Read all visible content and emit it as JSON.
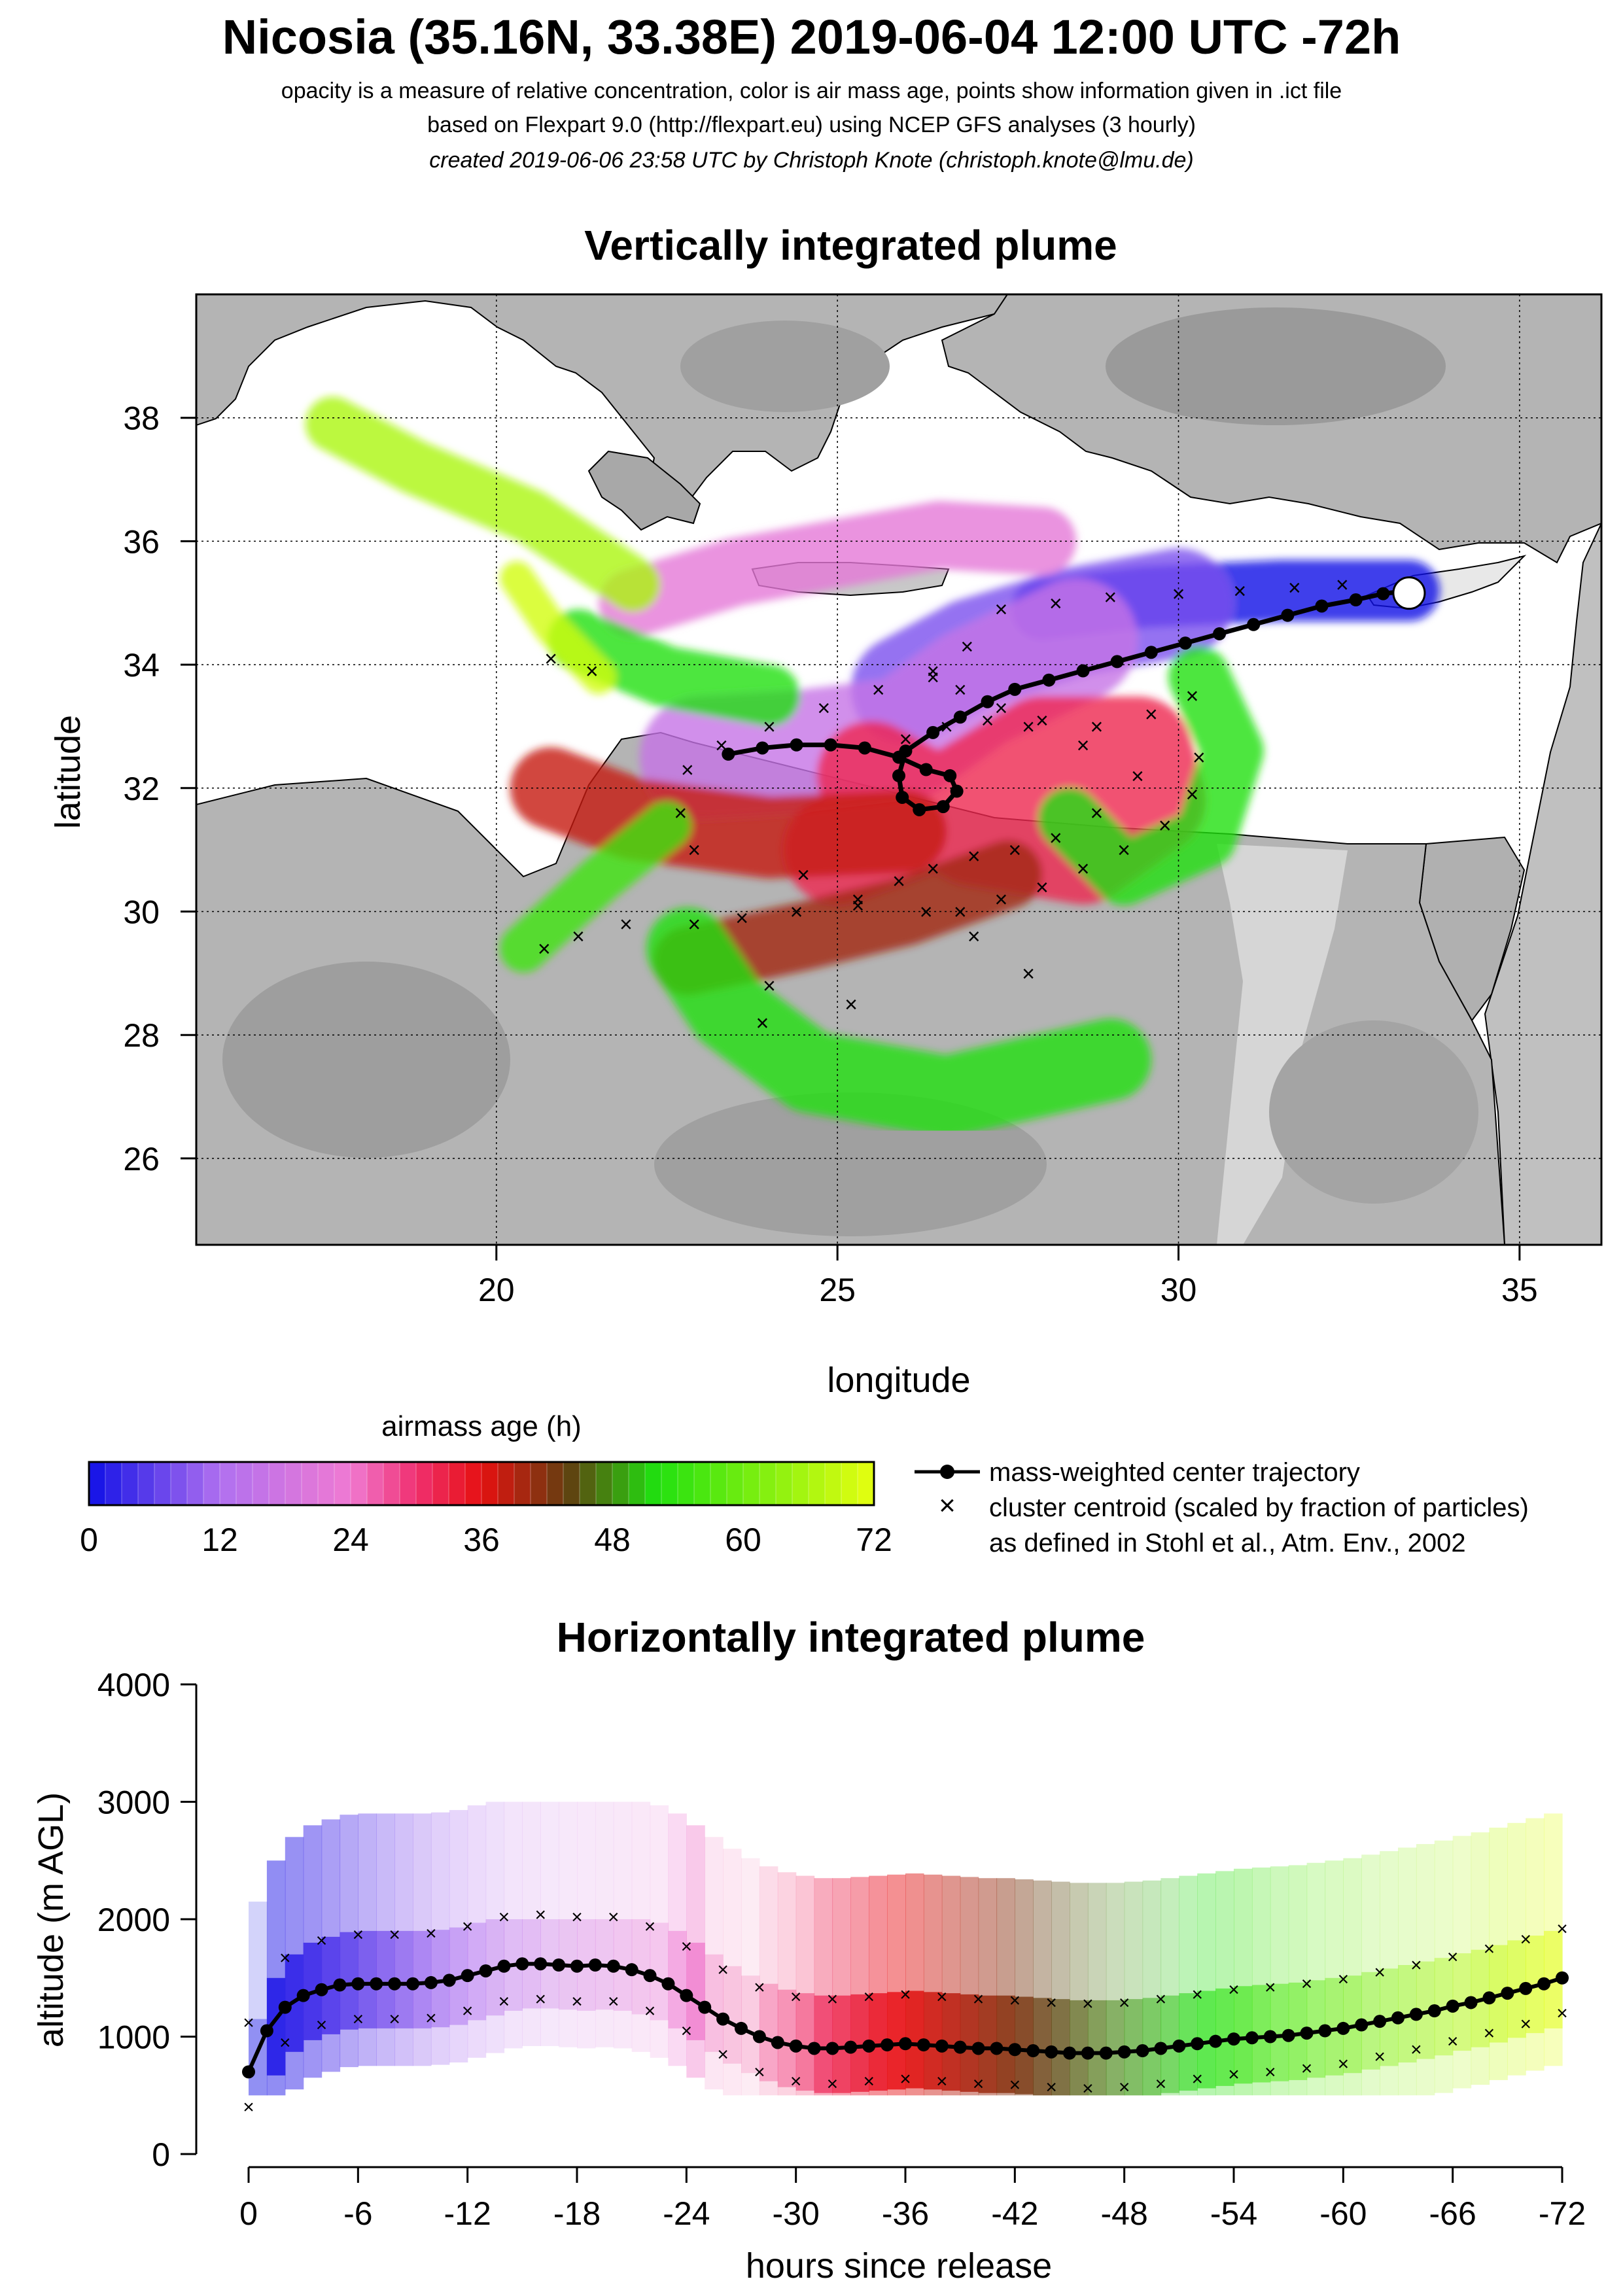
{
  "header": {
    "title": "Nicosia (35.16N, 33.38E) 2019-06-04 12:00 UTC -72h",
    "line1": "opacity is a measure of relative concentration, color is air mass age, points show information given in .ict file",
    "line2": "based on Flexpart 9.0 (http://flexpart.eu) using NCEP GFS analyses (3 hourly)",
    "line3": "created 2019-06-06 23:58 UTC by Christoph Knote (christoph.knote@lmu.de)"
  },
  "colors": {
    "age_ramp": [
      "#1010e6",
      "#b070f0",
      "#f07ad2",
      "#f03070",
      "#e61010",
      "#604010",
      "#20e010",
      "#e6ff10"
    ],
    "age_stops": [
      0,
      12,
      24,
      30,
      36,
      44,
      52,
      72
    ],
    "land": "#b4b4b4",
    "sea": "#ffffff"
  },
  "chart_data": [
    {
      "type": "heatmap",
      "title": "Vertically integrated plume",
      "xlabel": "longitude",
      "ylabel": "latitude",
      "xlim": [
        15.6,
        36.2
      ],
      "ylim": [
        24.6,
        40.0
      ],
      "xticks": [
        20,
        25,
        30,
        35
      ],
      "yticks": [
        26,
        28,
        30,
        32,
        34,
        36,
        38
      ],
      "grid": true,
      "release_point": {
        "lon": 33.38,
        "lat": 35.16
      },
      "center_trajectory": {
        "name": "mass-weighted center trajectory",
        "lon": [
          33.38,
          33.0,
          32.6,
          32.1,
          31.6,
          31.1,
          30.6,
          30.1,
          29.6,
          29.1,
          28.6,
          28.1,
          27.6,
          27.2,
          26.8,
          26.4,
          26.0,
          25.9,
          25.95,
          26.2,
          26.55,
          26.75,
          26.65,
          26.3,
          25.9,
          25.4,
          24.9,
          24.4,
          23.9,
          23.4
        ],
        "lat": [
          35.2,
          35.15,
          35.05,
          34.95,
          34.8,
          34.65,
          34.5,
          34.35,
          34.2,
          34.05,
          33.9,
          33.75,
          33.6,
          33.4,
          33.15,
          32.9,
          32.6,
          32.2,
          31.85,
          31.65,
          31.7,
          31.95,
          32.2,
          32.3,
          32.5,
          32.65,
          32.7,
          32.7,
          32.65,
          32.55
        ]
      },
      "cluster_centroids": {
        "name": "cluster centroid (scaled by fraction of particles)",
        "lon": [
          32.4,
          31.7,
          30.9,
          30.0,
          29.0,
          28.2,
          27.4,
          26.9,
          26.4,
          30.2,
          29.6,
          28.8,
          28.0,
          27.4,
          26.8,
          26.4,
          25.6,
          24.8,
          24.0,
          23.3,
          22.8,
          22.7,
          22.9,
          30.3,
          30.2,
          29.8,
          29.2,
          28.6,
          28.0,
          27.4,
          26.8,
          28.8,
          28.2,
          27.6,
          27.0,
          26.4,
          25.9,
          25.3,
          24.4,
          23.6,
          22.9,
          21.9,
          21.2,
          20.7,
          26.0,
          26.6,
          27.2,
          27.8,
          28.6,
          29.4,
          24.5,
          25.3,
          26.3,
          27.0,
          27.8,
          24.0,
          23.9,
          25.2,
          20.8,
          21.4
        ],
        "lat": [
          35.3,
          35.25,
          35.2,
          35.15,
          35.1,
          35.0,
          34.9,
          34.3,
          33.8,
          33.5,
          33.2,
          33.0,
          33.1,
          33.3,
          33.6,
          33.9,
          33.6,
          33.3,
          33.0,
          32.7,
          32.3,
          31.6,
          31.0,
          32.5,
          31.9,
          31.4,
          31.0,
          30.7,
          30.4,
          30.2,
          30.0,
          31.6,
          31.2,
          31.0,
          30.9,
          30.7,
          30.5,
          30.2,
          30.0,
          29.9,
          29.8,
          29.8,
          29.6,
          29.4,
          32.8,
          33.0,
          33.1,
          33.0,
          32.7,
          32.2,
          30.6,
          30.1,
          30.0,
          29.6,
          29.0,
          28.8,
          28.2,
          28.5,
          34.1,
          33.9
        ]
      },
      "plume_arms": [
        {
          "age_h": 0,
          "lon": [
            33.38,
            31.5,
            29.5,
            28.0
          ],
          "lat": [
            35.2,
            35.2,
            35.1,
            34.9
          ],
          "width_deg": 0.9
        },
        {
          "age_h": 8,
          "lon": [
            30.0,
            28.5,
            27.0,
            26.0
          ],
          "lat": [
            35.0,
            34.7,
            34.2,
            33.6
          ],
          "width_deg": 1.6
        },
        {
          "age_h": 16,
          "lon": [
            28.5,
            27.0,
            26.0,
            24.5,
            23.0
          ],
          "lat": [
            34.4,
            33.6,
            32.8,
            32.6,
            32.5
          ],
          "width_deg": 1.8
        },
        {
          "age_h": 22,
          "lon": [
            28.0,
            26.5,
            25.0,
            23.5,
            22.0
          ],
          "lat": [
            36.0,
            36.1,
            35.8,
            35.5,
            35.0
          ],
          "width_deg": 1.0
        },
        {
          "age_h": 32,
          "lon": [
            25.5,
            27.0,
            28.6,
            29.6,
            29.4,
            28.0,
            26.5,
            25.0
          ],
          "lat": [
            32.2,
            31.3,
            31.0,
            31.8,
            32.6,
            32.6,
            31.6,
            31.0
          ],
          "width_deg": 1.6
        },
        {
          "age_h": 38,
          "lon": [
            26.0,
            24.0,
            22.0,
            20.8
          ],
          "lat": [
            31.3,
            31.2,
            31.5,
            32.0
          ],
          "width_deg": 1.2
        },
        {
          "age_h": 40,
          "lon": [
            27.5,
            26.0,
            24.5,
            22.8
          ],
          "lat": [
            30.6,
            30.0,
            29.6,
            29.2
          ],
          "width_deg": 1.0
        },
        {
          "age_h": 52,
          "lon": [
            30.3,
            30.8,
            30.4,
            29.2,
            28.4
          ],
          "lat": [
            33.8,
            32.6,
            31.2,
            30.6,
            31.5
          ],
          "width_deg": 0.9
        },
        {
          "age_h": 52,
          "lon": [
            22.8,
            23.4,
            24.6,
            26.6,
            29.0
          ],
          "lat": [
            29.4,
            28.4,
            27.4,
            27.0,
            27.6
          ],
          "width_deg": 1.2
        },
        {
          "age_h": 52,
          "lon": [
            24.0,
            22.5,
            21.2
          ],
          "lat": [
            33.5,
            33.8,
            34.4
          ],
          "width_deg": 0.9
        },
        {
          "age_h": 55,
          "lon": [
            22.5,
            21.5,
            20.4
          ],
          "lat": [
            31.4,
            30.5,
            29.4
          ],
          "width_deg": 0.7
        },
        {
          "age_h": 66,
          "lon": [
            22.0,
            20.5,
            18.8,
            17.6
          ],
          "lat": [
            35.3,
            36.4,
            37.2,
            37.9
          ],
          "width_deg": 0.8
        },
        {
          "age_h": 70,
          "lon": [
            21.5,
            20.8,
            20.3
          ],
          "lat": [
            33.8,
            34.6,
            35.4
          ],
          "width_deg": 0.5
        }
      ]
    },
    {
      "type": "heatmap",
      "title": "Horizontally integrated plume",
      "xlabel": "hours since release",
      "ylabel": "altitude (m AGL)",
      "xlim": [
        0,
        -72
      ],
      "ylim": [
        0,
        4000
      ],
      "xticks": [
        0,
        -6,
        -12,
        -18,
        -24,
        -30,
        -36,
        -42,
        -48,
        -54,
        -60,
        -66,
        -72
      ],
      "yticks": [
        0,
        1000,
        2000,
        3000,
        4000
      ],
      "center_trajectory": {
        "name": "mass-weighted center trajectory",
        "x": [
          0,
          -1,
          -2,
          -3,
          -4,
          -5,
          -6,
          -7,
          -8,
          -9,
          -10,
          -11,
          -12,
          -13,
          -14,
          -15,
          -16,
          -17,
          -18,
          -19,
          -20,
          -21,
          -22,
          -23,
          -24,
          -25,
          -26,
          -27,
          -28,
          -29,
          -30,
          -31,
          -32,
          -33,
          -34,
          -35,
          -36,
          -37,
          -38,
          -39,
          -40,
          -41,
          -42,
          -43,
          -44,
          -45,
          -46,
          -47,
          -48,
          -49,
          -50,
          -51,
          -52,
          -53,
          -54,
          -55,
          -56,
          -57,
          -58,
          -59,
          -60,
          -61,
          -62,
          -63,
          -64,
          -65,
          -66,
          -67,
          -68,
          -69,
          -70,
          -71,
          -72
        ],
        "y": [
          700,
          1050,
          1250,
          1350,
          1400,
          1440,
          1450,
          1450,
          1450,
          1450,
          1460,
          1480,
          1520,
          1560,
          1600,
          1620,
          1620,
          1610,
          1600,
          1610,
          1600,
          1570,
          1520,
          1450,
          1350,
          1250,
          1150,
          1070,
          1000,
          950,
          920,
          900,
          900,
          910,
          920,
          930,
          940,
          930,
          920,
          910,
          900,
          900,
          890,
          880,
          870,
          860,
          860,
          860,
          870,
          880,
          900,
          920,
          940,
          960,
          980,
          990,
          1000,
          1010,
          1030,
          1050,
          1070,
          1100,
          1130,
          1160,
          1190,
          1220,
          1260,
          1290,
          1330,
          1370,
          1410,
          1450,
          1500
        ]
      },
      "age_band_opacity": [
        0.35,
        0.9,
        0.9,
        0.9,
        0.85,
        0.8,
        0.75,
        0.7,
        0.65,
        0.6,
        0.55,
        0.5,
        0.45,
        0.4,
        0.35,
        0.35,
        0.3,
        0.3,
        0.3,
        0.3,
        0.3,
        0.3,
        0.3,
        0.5,
        0.7,
        0.3,
        0.25,
        0.2,
        0.35,
        0.4,
        0.5,
        0.7,
        0.75,
        0.8,
        0.85,
        0.85,
        0.85,
        0.85,
        0.85,
        0.85,
        0.85,
        0.85,
        0.8,
        0.7,
        0.65,
        0.6,
        0.55,
        0.5,
        0.5,
        0.5,
        0.5,
        0.55,
        0.6,
        0.6,
        0.6,
        0.55,
        0.5,
        0.5,
        0.45,
        0.45,
        0.45,
        0.4,
        0.4,
        0.4,
        0.4,
        0.4,
        0.4,
        0.45,
        0.5,
        0.5,
        0.5,
        0.5
      ]
    }
  ],
  "legend": {
    "colorbar_title": "airmass age (h)",
    "colorbar_ticks": [
      0,
      12,
      24,
      36,
      48,
      60,
      72
    ],
    "entry_trajectory": "mass-weighted center trajectory",
    "entry_centroid": "cluster centroid (scaled by fraction of particles)",
    "entry_source": "as defined in Stohl et al., Atm. Env., 2002"
  }
}
